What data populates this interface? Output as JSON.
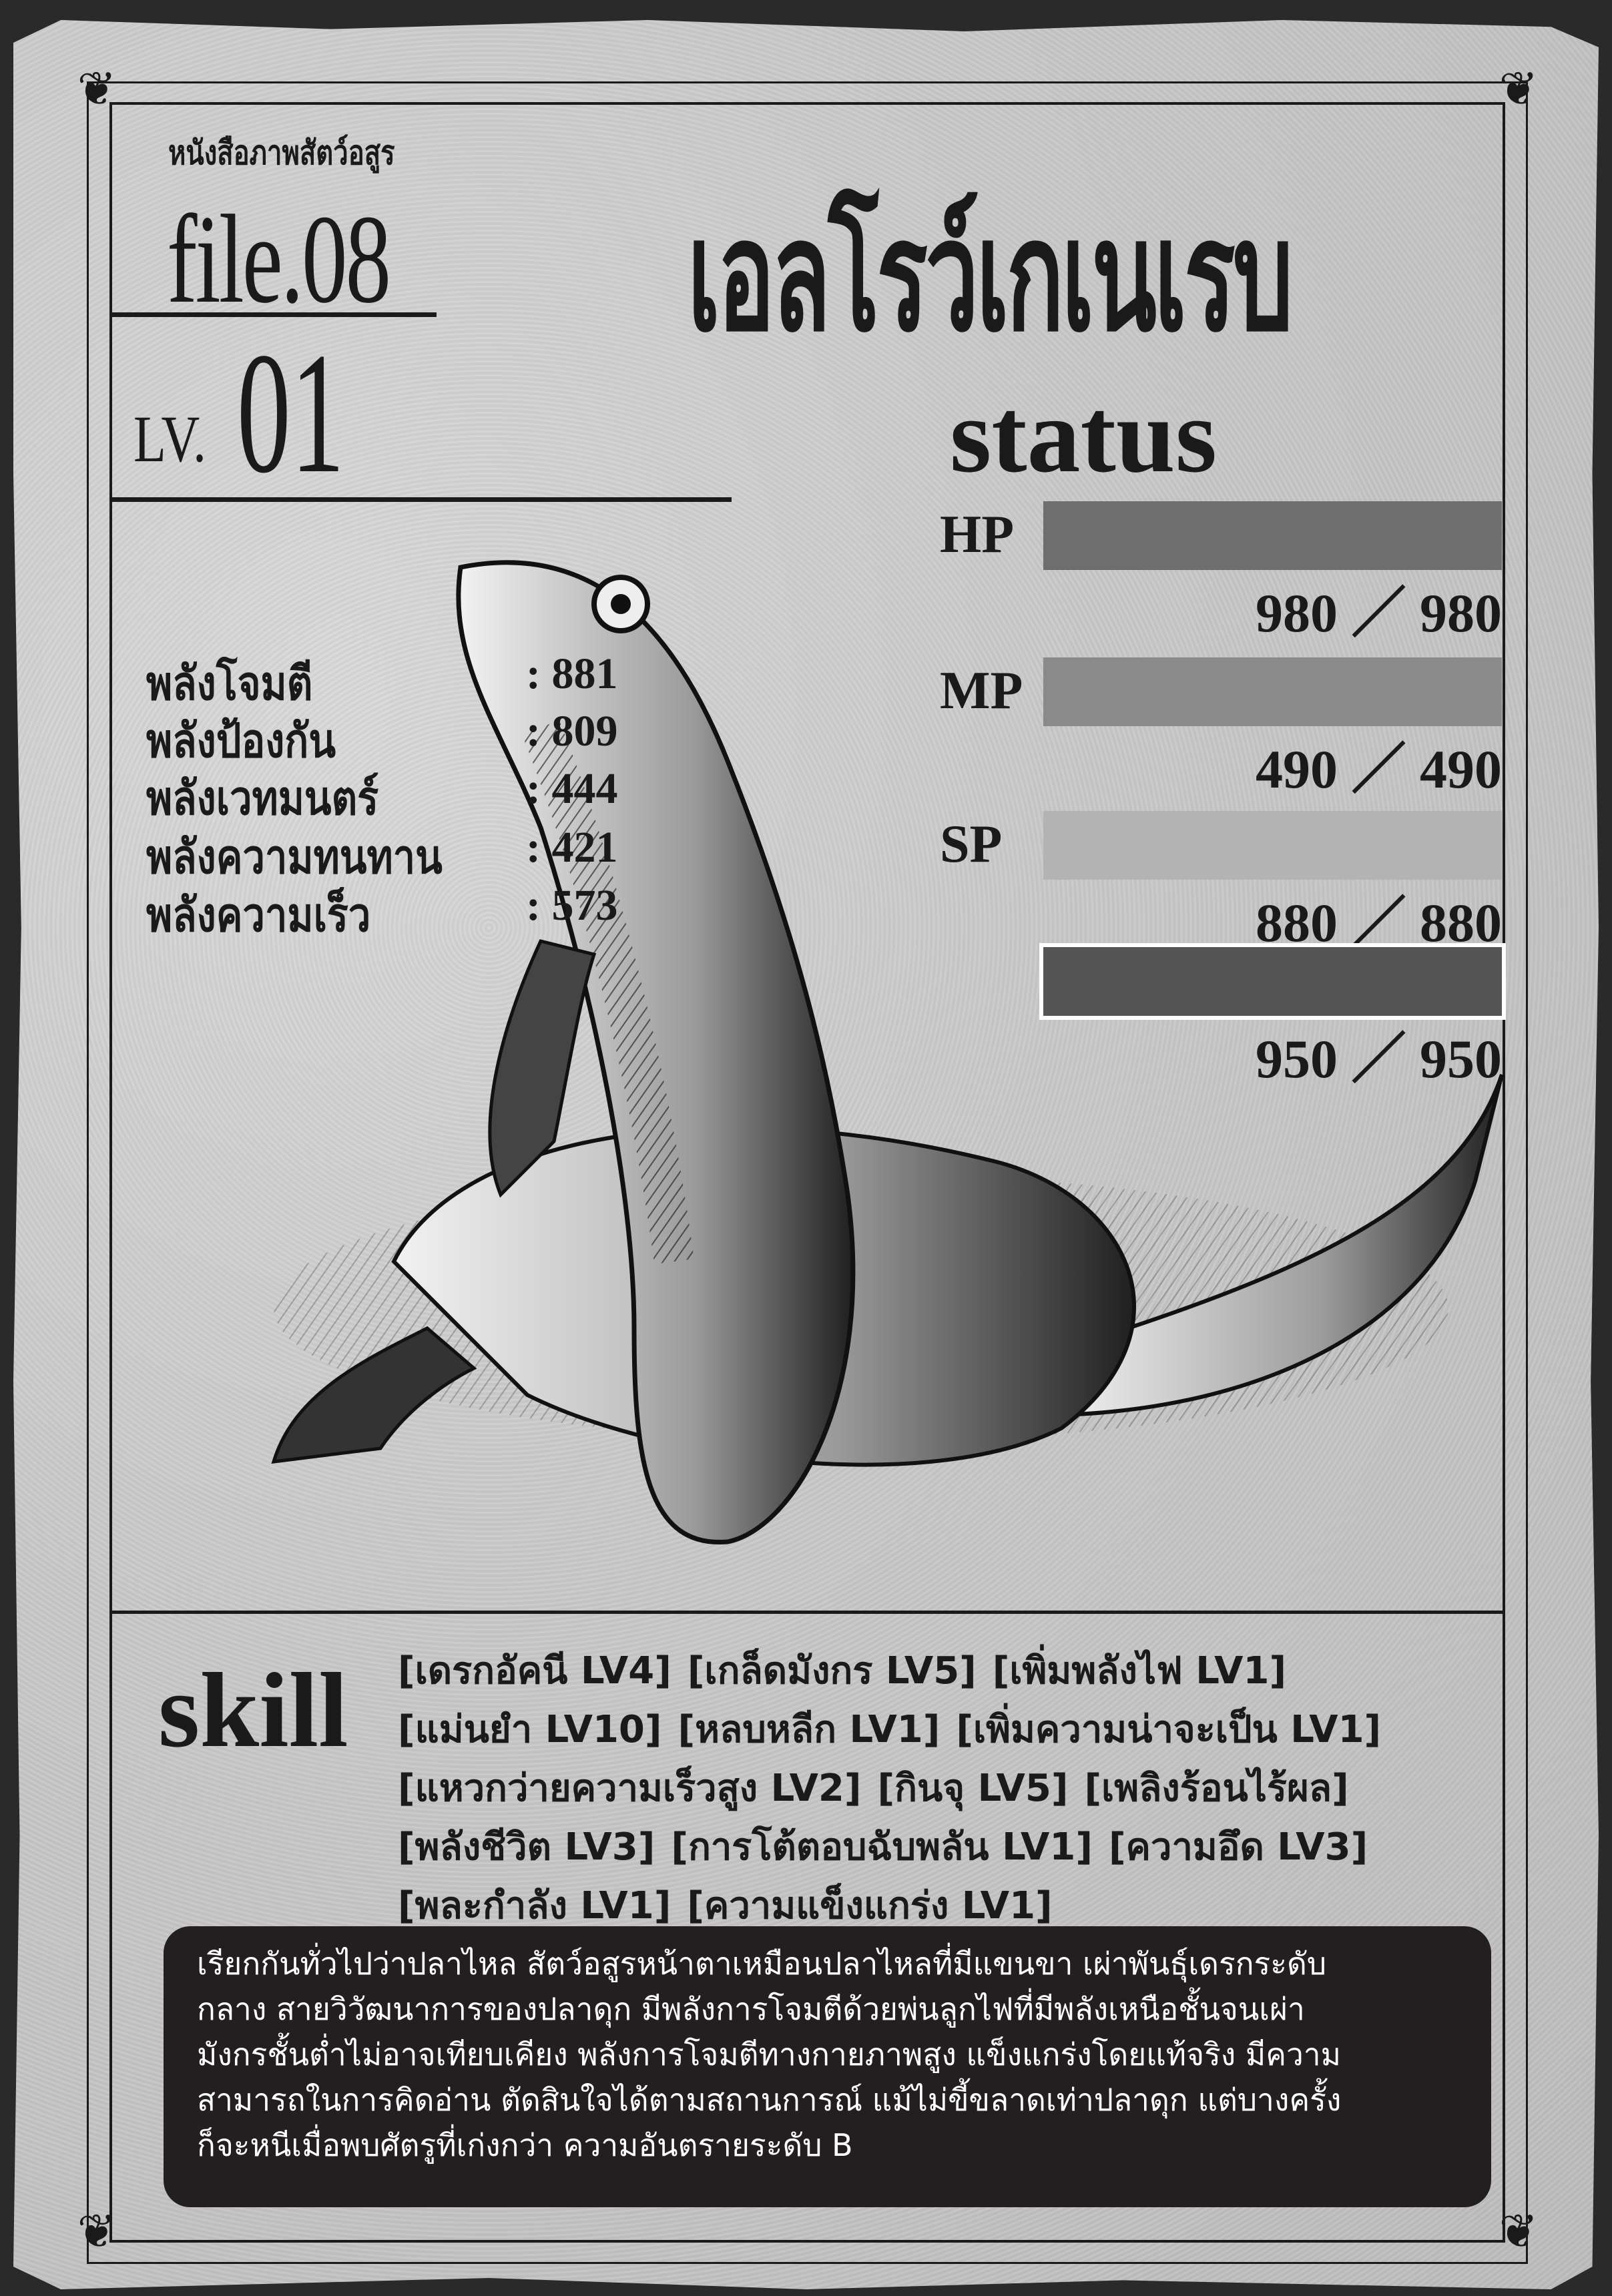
{
  "header": {
    "book_title": "หนังสือภาพสัตว์อสูร",
    "file_label": "file.08",
    "level_prefix": "LV.",
    "level_value": "01",
    "monster_name": "เอลโรว์เกเนเรบ"
  },
  "status": {
    "heading": "status",
    "bars": [
      {
        "label": "HP",
        "current": "980",
        "max": "980",
        "fill": 1.0,
        "color": "#6e6e6e"
      },
      {
        "label": "MP",
        "current": "490",
        "max": "490",
        "fill": 1.0,
        "color": "#8a8a8a"
      },
      {
        "label": "SP",
        "current": "880",
        "max": "880",
        "fill": 1.0,
        "color": "#b3b3b3"
      },
      {
        "label": "",
        "current": "950",
        "max": "950",
        "fill": 1.0,
        "color": "#555555"
      }
    ],
    "separator": "／"
  },
  "stats": [
    {
      "label": "พลังโจมตี",
      "value": ": 881"
    },
    {
      "label": "พลังป้องกัน",
      "value": ": 809"
    },
    {
      "label": "พลังเวทมนตร์",
      "value": ": 444"
    },
    {
      "label": "พลังความทนทาน",
      "value": ": 421"
    },
    {
      "label": "พลังความเร็ว",
      "value": ": 573"
    }
  ],
  "skills": {
    "heading": "skill",
    "lines": [
      [
        "[เดรกอัคนี LV4]",
        "[เกล็ดมังกร LV5]",
        "[เพิ่มพลังไฟ LV1]"
      ],
      [
        "[แม่นยำ LV10]",
        "[หลบหลีก LV1]",
        "[เพิ่มความน่าจะเป็น LV1]"
      ],
      [
        "[แหวกว่ายความเร็วสูง LV2]",
        "[กินจุ LV5]",
        "[เพลิงร้อนไร้ผล]"
      ],
      [
        "[พลังชีวิต LV3]",
        "[การโต้ตอบฉับพลัน LV1]",
        "[ความอึด LV3]"
      ],
      [
        "[พละกำลัง LV1]",
        "[ความแข็งแกร่ง LV1]"
      ]
    ]
  },
  "description": [
    "เรียกกันทั่วไปว่าปลาไหล สัตว์อสูรหน้าตาเหมือนปลาไหลที่มีแขนขา เผ่าพันธุ์เดรกระดับ",
    "กลาง สายวิวัฒนาการของปลาดุก มีพลังการโจมตีด้วยพ่นลูกไฟที่มีพลังเหนือชั้นจนเผ่า",
    "มังกรชั้นต่ำไม่อาจเทียบเคียง พลังการโจมตีทางกายภาพสูง แข็งแกร่งโดยแท้จริง มีความ",
    "สามารถในการคิดอ่าน ตัดสินใจได้ตามสถานการณ์ แม้ไม่ขี้ขลาดเท่าปลาดุก แต่บางครั้ง",
    "ก็จะหนีเมื่อพบศัตรูที่เก่งกว่า ความอันตรายระดับ B"
  ]
}
